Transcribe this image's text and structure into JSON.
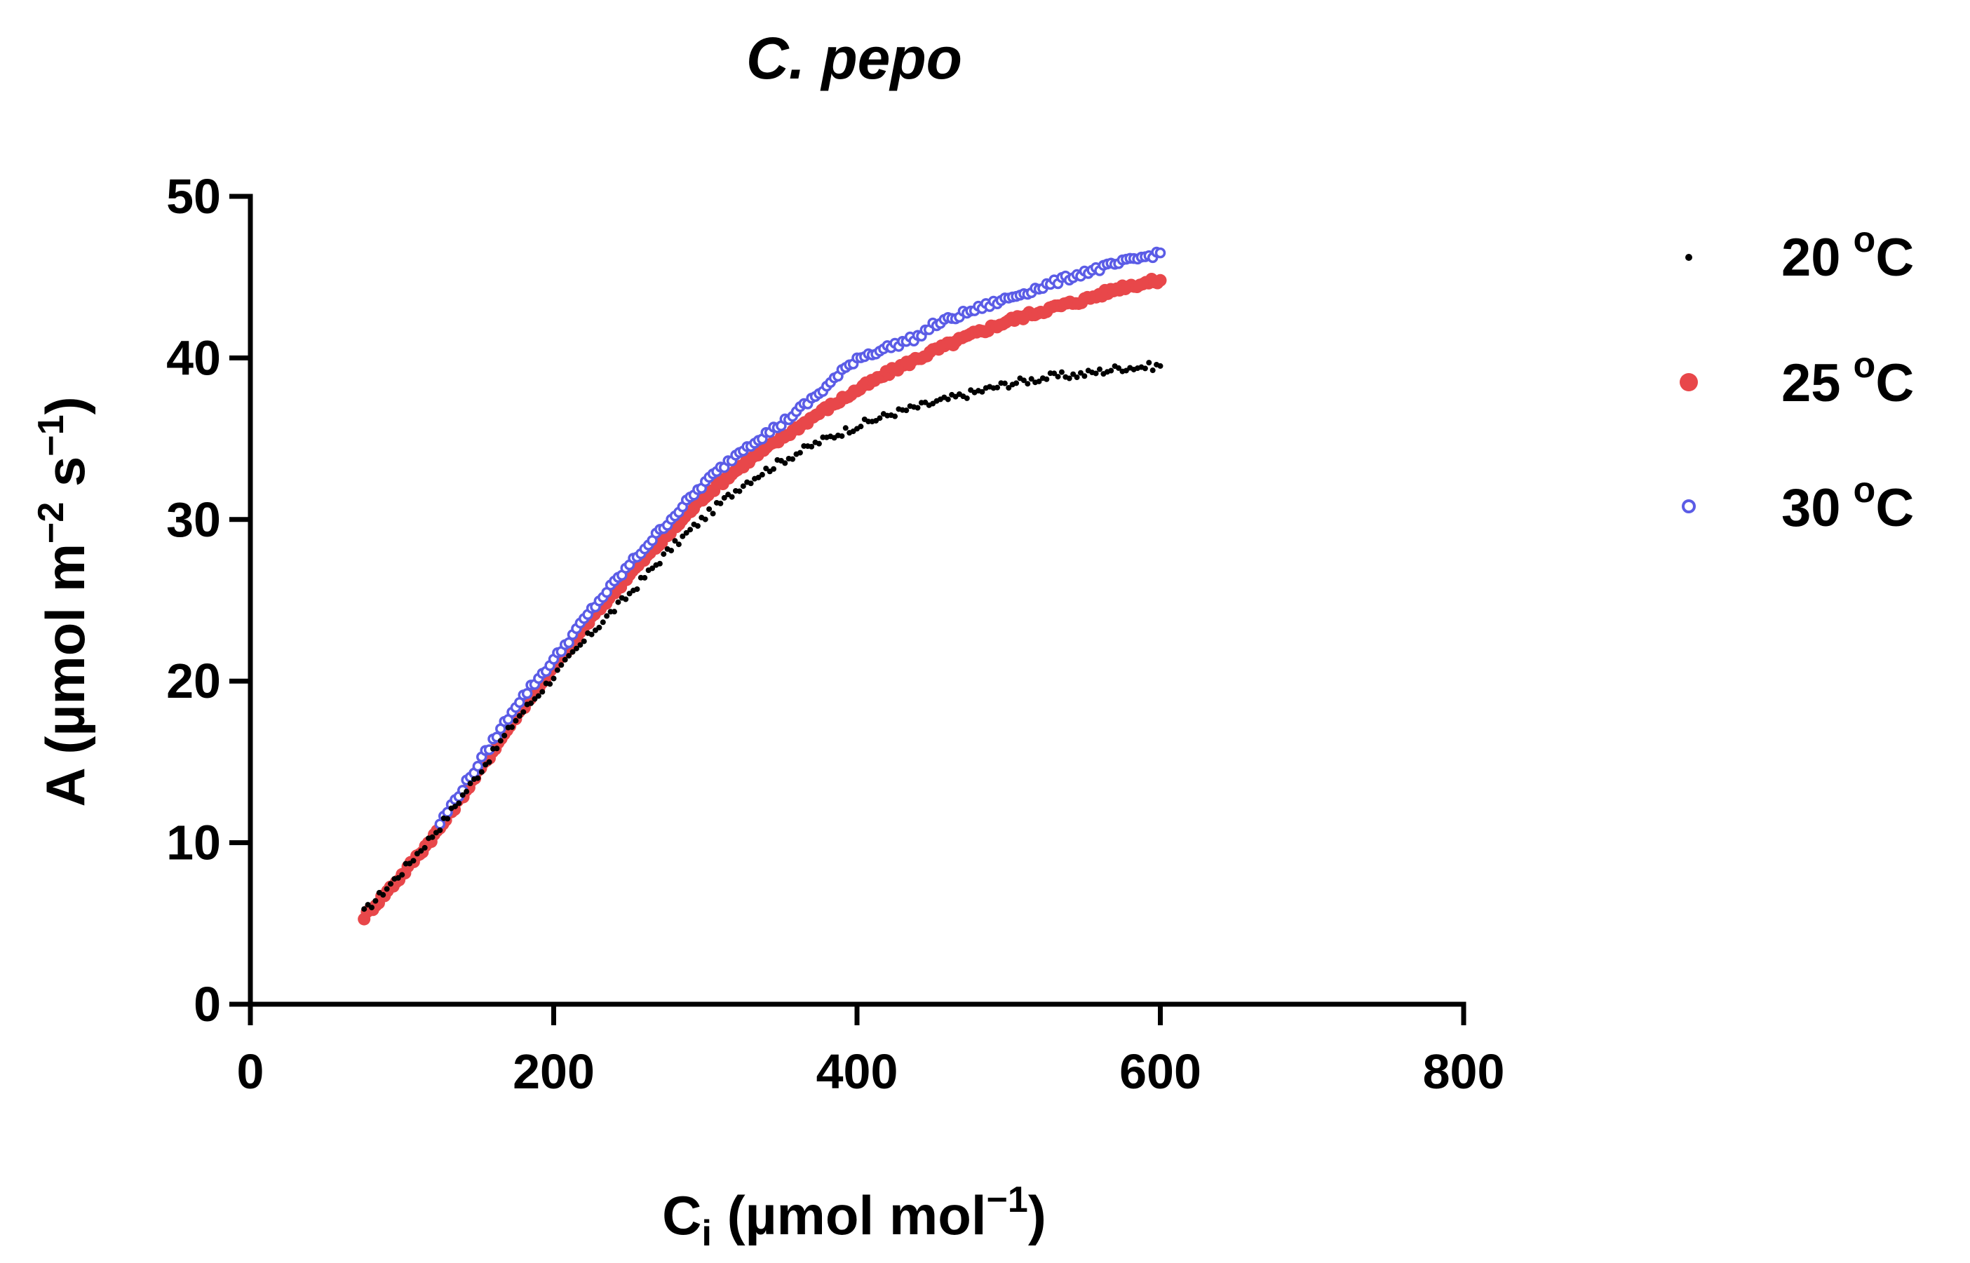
{
  "chart_data": {
    "type": "scatter",
    "title": "C. pepo",
    "xlabel": {
      "main": "C",
      "sub": "i",
      "unit_prefix": " (µmol mol",
      "unit_exp": "−1",
      "unit_suffix": ")"
    },
    "ylabel": {
      "prefix": "A (µmol m",
      "exp1": "−2",
      "mid": " s",
      "exp2": "−1",
      "suffix": ")"
    },
    "xlim": [
      0,
      800
    ],
    "ylim": [
      0,
      50
    ],
    "xticks": [
      0,
      200,
      400,
      600,
      800
    ],
    "yticks": [
      0,
      10,
      20,
      30,
      40,
      50
    ],
    "grid": false,
    "legend_position": "right",
    "series": [
      {
        "name": "20 °C",
        "label_num": "20",
        "label_deg": "o",
        "label_unit": "C",
        "color": "#000000",
        "marker": "small-dot",
        "points": [
          [
            75,
            5.7
          ],
          [
            100,
            8.2
          ],
          [
            125,
            11.0
          ],
          [
            150,
            14.2
          ],
          [
            175,
            17.6
          ],
          [
            200,
            20.3
          ],
          [
            225,
            23.0
          ],
          [
            250,
            25.4
          ],
          [
            275,
            28.0
          ],
          [
            300,
            30.2
          ],
          [
            325,
            32.2
          ],
          [
            350,
            33.6
          ],
          [
            375,
            34.8
          ],
          [
            400,
            35.8
          ],
          [
            425,
            36.6
          ],
          [
            450,
            37.2
          ],
          [
            475,
            37.8
          ],
          [
            500,
            38.4
          ],
          [
            525,
            38.8
          ],
          [
            550,
            39.0
          ],
          [
            575,
            39.4
          ],
          [
            600,
            39.5
          ]
        ]
      },
      {
        "name": "25 °C",
        "label_num": "25",
        "label_deg": "o",
        "label_unit": "C",
        "color": "#E8474A",
        "marker": "filled-circle",
        "points": [
          [
            75,
            5.4
          ],
          [
            100,
            8.0
          ],
          [
            125,
            10.9
          ],
          [
            150,
            14.3
          ],
          [
            175,
            17.8
          ],
          [
            200,
            20.9
          ],
          [
            225,
            23.9
          ],
          [
            250,
            26.6
          ],
          [
            275,
            29.0
          ],
          [
            300,
            31.5
          ],
          [
            325,
            33.4
          ],
          [
            350,
            35.0
          ],
          [
            375,
            36.6
          ],
          [
            400,
            38.0
          ],
          [
            425,
            39.3
          ],
          [
            450,
            40.4
          ],
          [
            475,
            41.4
          ],
          [
            500,
            42.3
          ],
          [
            525,
            43.0
          ],
          [
            550,
            43.6
          ],
          [
            575,
            44.4
          ],
          [
            600,
            44.8
          ]
        ]
      },
      {
        "name": "30 °C",
        "label_num": "30",
        "label_deg": "o",
        "label_unit": "C",
        "color": "#5B5CE6",
        "marker": "open-circle",
        "points": [
          [
            125,
            11.2
          ],
          [
            150,
            14.8
          ],
          [
            175,
            18.5
          ],
          [
            200,
            21.3
          ],
          [
            225,
            24.4
          ],
          [
            250,
            27.2
          ],
          [
            275,
            29.8
          ],
          [
            300,
            32.3
          ],
          [
            325,
            34.4
          ],
          [
            350,
            35.9
          ],
          [
            375,
            37.8
          ],
          [
            400,
            40.0
          ],
          [
            410,
            40.3
          ],
          [
            425,
            40.8
          ],
          [
            440,
            41.3
          ],
          [
            450,
            42.0
          ],
          [
            475,
            42.9
          ],
          [
            500,
            43.7
          ],
          [
            525,
            44.5
          ],
          [
            550,
            45.3
          ],
          [
            575,
            45.9
          ],
          [
            600,
            46.5
          ]
        ]
      }
    ]
  }
}
